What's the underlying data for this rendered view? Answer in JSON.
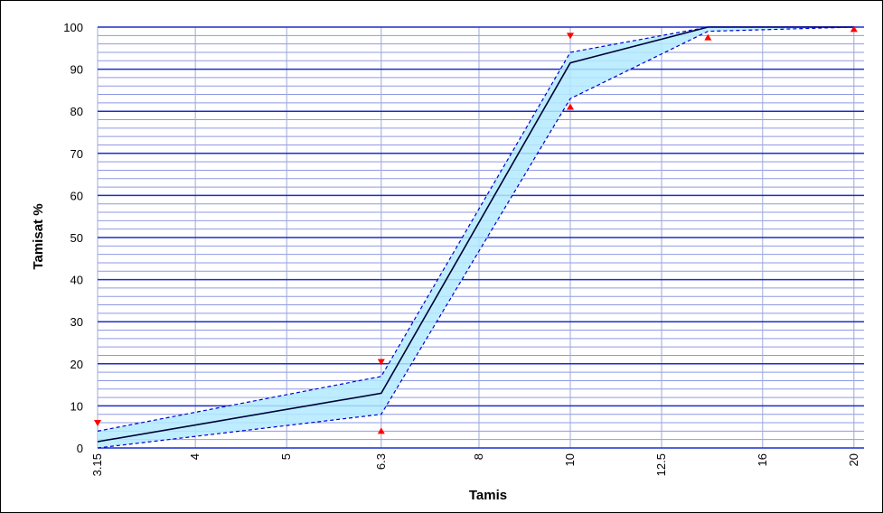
{
  "chart_data": {
    "type": "line",
    "xlabel": "Tamis",
    "ylabel": "Tamisat %",
    "x_categories": [
      "3.15",
      "4",
      "5",
      "6.3",
      "8",
      "10",
      "12.5",
      "16",
      "20"
    ],
    "x_scale": "log",
    "ylim": [
      0,
      100
    ],
    "y_ticks": [
      0,
      10,
      20,
      30,
      40,
      50,
      60,
      70,
      80,
      90,
      100
    ],
    "grid": true,
    "series": [
      {
        "role": "central curve",
        "style": "solid",
        "color": "#000033",
        "x": [
          3.15,
          6.3,
          10,
          14,
          20
        ],
        "y": [
          1.5,
          13,
          91.5,
          100,
          100
        ]
      },
      {
        "role": "upper envelope",
        "style": "dashed",
        "color": "#0000cc",
        "x": [
          3.15,
          6.3,
          10,
          14,
          20
        ],
        "y": [
          4,
          17,
          94,
          100,
          100
        ]
      },
      {
        "role": "lower envelope",
        "style": "dashed",
        "color": "#0000cc",
        "x": [
          3.15,
          6.3,
          10,
          14,
          20
        ],
        "y": [
          0,
          8,
          83,
          99,
          100
        ]
      }
    ],
    "band_color": "#b3eaff",
    "markers": {
      "color": "#ff0000",
      "upper_limits": [
        {
          "x": 3.15,
          "y": 6
        },
        {
          "x": 6.3,
          "y": 20.5
        },
        {
          "x": 10,
          "y": 98
        }
      ],
      "lower_limits": [
        {
          "x": 6.3,
          "y": 4
        },
        {
          "x": 10,
          "y": 81
        },
        {
          "x": 14,
          "y": 97.5
        },
        {
          "x": 20,
          "y": 99.5
        }
      ]
    }
  }
}
